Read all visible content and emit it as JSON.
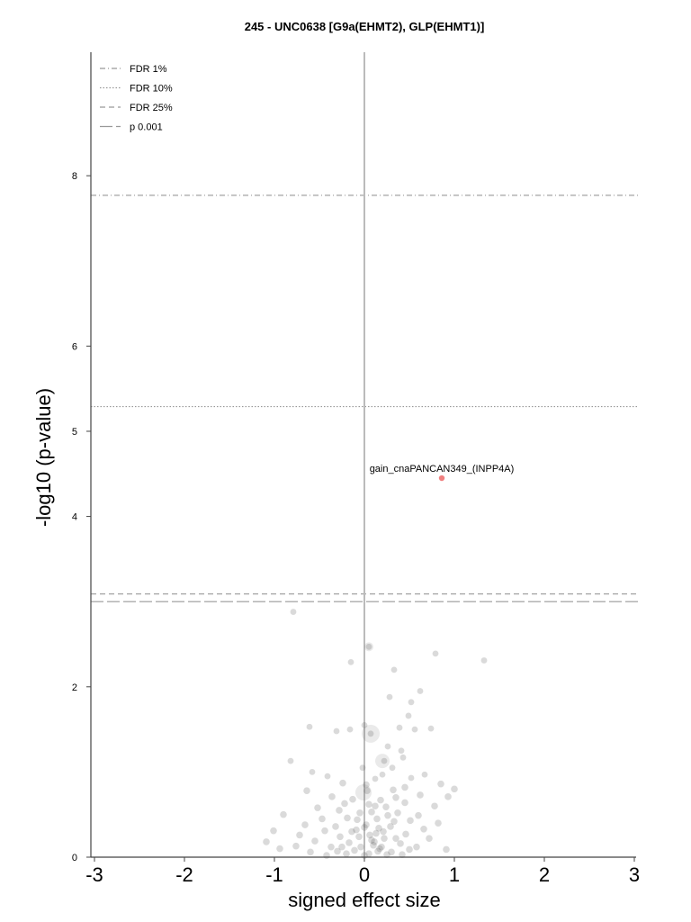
{
  "chart_data": {
    "type": "scatter",
    "title": "245 - UNC0638 [G9a(EHMT2), GLP(EHMT1)]",
    "xlabel": "signed effect size",
    "ylabel": "-log10 (p-value)",
    "xlim": [
      -3,
      3
    ],
    "ylim": [
      0,
      9.45
    ],
    "xticks": [
      "-3",
      "-2",
      "-1",
      "0",
      "1",
      "2",
      "3"
    ],
    "yticks": [
      "0",
      "2",
      "4",
      "5",
      "6",
      "8"
    ],
    "reference_lines": [
      {
        "label": "FDR 1%",
        "y": 7.77,
        "style": "dashdot",
        "color": "#999999"
      },
      {
        "label": "FDR 10%",
        "y": 5.29,
        "style": "dotted",
        "color": "#999999"
      },
      {
        "label": "FDR 25%",
        "y": 3.09,
        "style": "dashed",
        "color": "#999999"
      },
      {
        "label": "p 0.001",
        "y": 3.0,
        "style": "longdash",
        "color": "#999999"
      }
    ],
    "legend_position": "top-left",
    "highlight": {
      "label": "gain_cnaPANCAN349_(INPP4A)",
      "x": 0.86,
      "y": 4.45,
      "color": "#f08080"
    },
    "series": [
      {
        "values": [
          [
            -0.79,
            2.88
          ],
          [
            0.05,
            2.47
          ],
          [
            -0.15,
            2.29
          ],
          [
            0.79,
            2.39
          ],
          [
            1.33,
            2.31
          ],
          [
            0.33,
            2.2
          ],
          [
            0.62,
            1.95
          ],
          [
            0.28,
            1.88
          ],
          [
            0.52,
            1.82
          ],
          [
            0.49,
            1.66
          ],
          [
            0.07,
            1.45
          ],
          [
            -0.31,
            1.48
          ],
          [
            -0.16,
            1.5
          ],
          [
            -0.61,
            1.53
          ],
          [
            0.0,
            1.55
          ],
          [
            0.39,
            1.52
          ],
          [
            0.56,
            1.5
          ],
          [
            0.74,
            1.51
          ],
          [
            -0.82,
            1.13
          ],
          [
            0.22,
            1.13
          ],
          [
            0.43,
            1.17
          ],
          [
            0.31,
            1.05
          ],
          [
            -0.58,
            1.0
          ],
          [
            -0.41,
            0.95
          ],
          [
            0.52,
            0.93
          ],
          [
            0.67,
            0.97
          ],
          [
            0.85,
            0.86
          ],
          [
            1.0,
            0.8
          ],
          [
            -0.24,
            0.87
          ],
          [
            0.12,
            0.92
          ],
          [
            -0.64,
            0.78
          ],
          [
            0.03,
            0.78
          ],
          [
            0.32,
            0.79
          ],
          [
            0.62,
            0.73
          ],
          [
            0.93,
            0.71
          ],
          [
            -0.36,
            0.71
          ],
          [
            -0.13,
            0.68
          ],
          [
            0.18,
            0.67
          ],
          [
            0.45,
            0.64
          ],
          [
            0.78,
            0.6
          ],
          [
            -0.52,
            0.58
          ],
          [
            0.24,
            0.59
          ],
          [
            -0.28,
            0.55
          ],
          [
            0.08,
            0.53
          ],
          [
            0.37,
            0.52
          ],
          [
            0.6,
            0.49
          ],
          [
            -0.9,
            0.5
          ],
          [
            -0.47,
            0.45
          ],
          [
            -0.19,
            0.46
          ],
          [
            0.14,
            0.45
          ],
          [
            0.51,
            0.43
          ],
          [
            0.82,
            0.4
          ],
          [
            -0.66,
            0.38
          ],
          [
            -0.32,
            0.36
          ],
          [
            0.02,
            0.38
          ],
          [
            0.29,
            0.36
          ],
          [
            0.66,
            0.33
          ],
          [
            -1.01,
            0.31
          ],
          [
            -0.44,
            0.31
          ],
          [
            -0.09,
            0.32
          ],
          [
            0.21,
            0.3
          ],
          [
            0.46,
            0.27
          ],
          [
            -0.72,
            0.26
          ],
          [
            -0.27,
            0.24
          ],
          [
            0.06,
            0.26
          ],
          [
            0.35,
            0.22
          ],
          [
            0.72,
            0.22
          ],
          [
            -1.09,
            0.18
          ],
          [
            -0.55,
            0.19
          ],
          [
            -0.17,
            0.17
          ],
          [
            0.11,
            0.18
          ],
          [
            0.4,
            0.16
          ],
          [
            0.58,
            0.12
          ],
          [
            -0.76,
            0.13
          ],
          [
            -0.37,
            0.12
          ],
          [
            -0.04,
            0.12
          ],
          [
            0.19,
            0.12
          ],
          [
            0.5,
            0.09
          ],
          [
            -0.94,
            0.1
          ],
          [
            -0.3,
            0.07
          ],
          [
            -0.11,
            0.08
          ],
          [
            0.15,
            0.07
          ],
          [
            0.3,
            0.06
          ],
          [
            0.91,
            0.09
          ],
          [
            -0.6,
            0.06
          ],
          [
            -0.2,
            0.04
          ],
          [
            0.05,
            0.04
          ],
          [
            0.25,
            0.03
          ],
          [
            0.42,
            0.03
          ],
          [
            -0.42,
            0.02
          ],
          [
            0.0,
            0.02
          ],
          [
            0.1,
            0.14
          ],
          [
            -0.06,
            0.24
          ],
          [
            0.16,
            0.34
          ],
          [
            -0.08,
            0.44
          ],
          [
            0.26,
            0.49
          ],
          [
            0.12,
            0.6
          ],
          [
            -0.22,
            0.63
          ],
          [
            0.35,
            0.7
          ],
          [
            0.02,
            0.85
          ],
          [
            0.2,
            0.97
          ],
          [
            -0.02,
            1.05
          ],
          [
            0.41,
            1.25
          ],
          [
            0.26,
            1.3
          ],
          [
            0.45,
            0.82
          ],
          [
            0.08,
            0.2
          ],
          [
            0.17,
            0.1
          ],
          [
            -0.14,
            0.3
          ],
          [
            0.33,
            0.42
          ],
          [
            0.22,
            0.22
          ],
          [
            -0.25,
            0.12
          ],
          [
            0.0,
            0.35
          ],
          [
            0.13,
            0.28
          ],
          [
            -0.05,
            0.52
          ],
          [
            0.05,
            0.62
          ]
        ]
      }
    ],
    "colors": {
      "points": "#555555",
      "highlight": "#f08080",
      "axis": "#444444",
      "zero_line": "#bbbbbb"
    }
  }
}
